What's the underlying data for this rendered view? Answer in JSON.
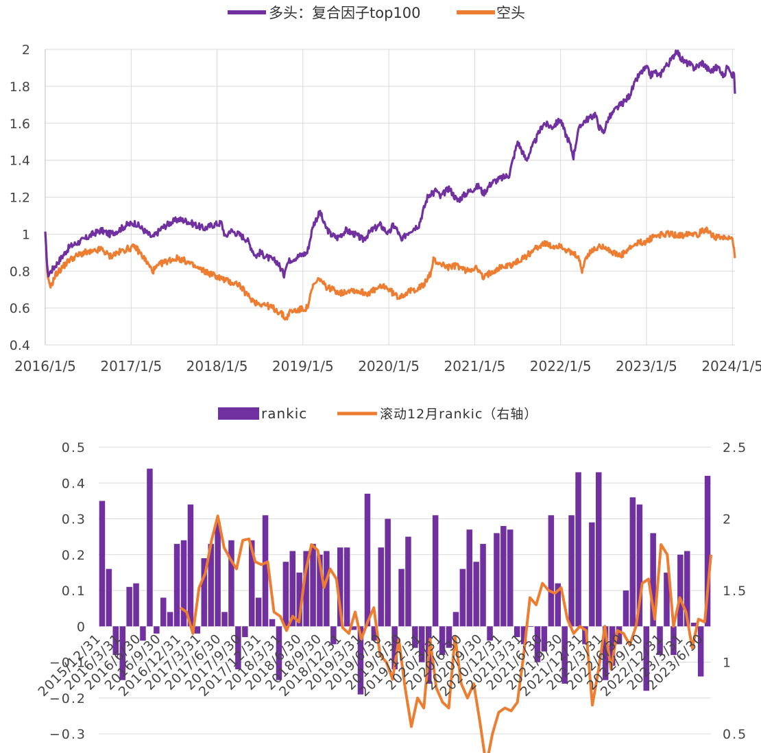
{
  "chart_data": [
    {
      "type": "line",
      "title": "",
      "legend_position": "top-center",
      "x_tick_labels": [
        "2016/1/5",
        "2017/1/5",
        "2018/1/5",
        "2019/1/5",
        "2020/1/5",
        "2021/1/5",
        "2022/1/5",
        "2023/1/5",
        "2024/1/5"
      ],
      "x_tick_years": [
        2016,
        2017,
        2018,
        2019,
        2020,
        2021,
        2022,
        2023,
        2024
      ],
      "x_range": [
        2016.0,
        2024.03
      ],
      "y_ticks": [
        "0.4",
        "0.6",
        "0.8",
        "1",
        "1.2",
        "1.4",
        "1.6",
        "1.8",
        "2"
      ],
      "ylim": [
        0.4,
        2.0
      ],
      "grid": true,
      "series": [
        {
          "name": "多头：复合因子top100",
          "color": "#7030A0",
          "x": [
            2016.0,
            2016.03,
            2016.07,
            2016.12,
            2016.2,
            2016.28,
            2016.36,
            2016.45,
            2016.55,
            2016.65,
            2016.75,
            2016.85,
            2016.95,
            2017.05,
            2017.15,
            2017.25,
            2017.35,
            2017.45,
            2017.55,
            2017.65,
            2017.75,
            2017.85,
            2017.95,
            2018.05,
            2018.1,
            2018.15,
            2018.25,
            2018.35,
            2018.45,
            2018.5,
            2018.6,
            2018.7,
            2018.78,
            2018.8,
            2018.85,
            2018.95,
            2019.05,
            2019.12,
            2019.2,
            2019.25,
            2019.32,
            2019.4,
            2019.5,
            2019.6,
            2019.7,
            2019.8,
            2019.9,
            2020.0,
            2020.05,
            2020.1,
            2020.15,
            2020.2,
            2020.25,
            2020.35,
            2020.45,
            2020.5,
            2020.52,
            2020.55,
            2020.6,
            2020.7,
            2020.8,
            2020.9,
            2021.0,
            2021.05,
            2021.1,
            2021.15,
            2021.2,
            2021.3,
            2021.4,
            2021.5,
            2021.55,
            2021.6,
            2021.65,
            2021.7,
            2021.75,
            2021.8,
            2021.9,
            2022.0,
            2022.05,
            2022.1,
            2022.15,
            2022.2,
            2022.25,
            2022.3,
            2022.35,
            2022.4,
            2022.45,
            2022.5,
            2022.55,
            2022.6,
            2022.65,
            2022.7,
            2022.75,
            2022.8,
            2022.85,
            2022.9,
            2022.95,
            2023.0,
            2023.05,
            2023.1,
            2023.15,
            2023.2,
            2023.25,
            2023.3,
            2023.35,
            2023.4,
            2023.45,
            2023.5,
            2023.55,
            2023.6,
            2023.65,
            2023.7,
            2023.75,
            2023.8,
            2023.85,
            2023.9,
            2023.95,
            2024.0,
            2024.02,
            2024.03
          ],
          "values": [
            1.0,
            0.78,
            0.8,
            0.83,
            0.88,
            0.93,
            0.95,
            0.97,
            1.0,
            1.02,
            1.0,
            1.02,
            1.05,
            1.06,
            1.02,
            0.98,
            1.03,
            1.06,
            1.08,
            1.07,
            1.05,
            1.03,
            1.05,
            1.06,
            0.98,
            1.02,
            1.0,
            0.97,
            0.88,
            0.9,
            0.87,
            0.85,
            0.78,
            0.83,
            0.86,
            0.88,
            0.9,
            1.05,
            1.12,
            1.05,
            1.0,
            0.98,
            1.02,
            1.0,
            0.97,
            1.02,
            1.05,
            1.0,
            1.05,
            1.02,
            0.96,
            1.0,
            1.02,
            1.05,
            1.2,
            1.23,
            1.22,
            1.24,
            1.2,
            1.25,
            1.18,
            1.22,
            1.25,
            1.26,
            1.22,
            1.25,
            1.28,
            1.3,
            1.32,
            1.5,
            1.45,
            1.4,
            1.45,
            1.5,
            1.55,
            1.6,
            1.58,
            1.62,
            1.55,
            1.5,
            1.42,
            1.55,
            1.6,
            1.62,
            1.63,
            1.65,
            1.58,
            1.55,
            1.62,
            1.65,
            1.68,
            1.7,
            1.72,
            1.75,
            1.8,
            1.85,
            1.88,
            1.9,
            1.86,
            1.88,
            1.85,
            1.9,
            1.92,
            1.95,
            2.0,
            1.95,
            1.93,
            1.92,
            1.9,
            1.91,
            1.93,
            1.9,
            1.88,
            1.9,
            1.9,
            1.85,
            1.92,
            1.86,
            1.87,
            1.76
          ]
        },
        {
          "name": "空头",
          "color": "#ED7D31",
          "x": [
            2016.0,
            2016.03,
            2016.07,
            2016.12,
            2016.2,
            2016.28,
            2016.36,
            2016.45,
            2016.55,
            2016.65,
            2016.75,
            2016.85,
            2016.95,
            2017.05,
            2017.15,
            2017.25,
            2017.35,
            2017.45,
            2017.55,
            2017.65,
            2017.75,
            2017.85,
            2017.95,
            2018.05,
            2018.15,
            2018.25,
            2018.35,
            2018.45,
            2018.55,
            2018.65,
            2018.75,
            2018.8,
            2018.85,
            2018.95,
            2019.05,
            2019.12,
            2019.2,
            2019.25,
            2019.35,
            2019.45,
            2019.55,
            2019.65,
            2019.75,
            2019.85,
            2019.95,
            2020.05,
            2020.1,
            2020.2,
            2020.3,
            2020.4,
            2020.5,
            2020.52,
            2020.6,
            2020.7,
            2020.8,
            2020.9,
            2021.0,
            2021.05,
            2021.1,
            2021.2,
            2021.3,
            2021.4,
            2021.5,
            2021.6,
            2021.7,
            2021.8,
            2021.9,
            2022.0,
            2022.1,
            2022.2,
            2022.25,
            2022.3,
            2022.4,
            2022.5,
            2022.6,
            2022.7,
            2022.8,
            2022.9,
            2023.0,
            2023.1,
            2023.2,
            2023.3,
            2023.4,
            2023.5,
            2023.6,
            2023.7,
            2023.8,
            2023.9,
            2024.0,
            2024.02,
            2024.03
          ],
          "values": [
            1.0,
            0.75,
            0.72,
            0.78,
            0.82,
            0.86,
            0.88,
            0.9,
            0.9,
            0.92,
            0.88,
            0.9,
            0.92,
            0.93,
            0.87,
            0.8,
            0.84,
            0.86,
            0.87,
            0.85,
            0.82,
            0.8,
            0.78,
            0.76,
            0.74,
            0.73,
            0.67,
            0.63,
            0.62,
            0.6,
            0.57,
            0.54,
            0.58,
            0.59,
            0.6,
            0.72,
            0.76,
            0.72,
            0.7,
            0.68,
            0.7,
            0.69,
            0.68,
            0.7,
            0.72,
            0.68,
            0.66,
            0.68,
            0.7,
            0.72,
            0.8,
            0.86,
            0.84,
            0.82,
            0.83,
            0.8,
            0.82,
            0.8,
            0.76,
            0.8,
            0.82,
            0.83,
            0.85,
            0.88,
            0.92,
            0.95,
            0.93,
            0.94,
            0.9,
            0.88,
            0.8,
            0.88,
            0.92,
            0.94,
            0.9,
            0.88,
            0.92,
            0.95,
            0.96,
            0.99,
            1.0,
            1.0,
            0.99,
            1.01,
            1.0,
            1.03,
            0.98,
            0.98,
            0.97,
            0.94,
            0.87
          ]
        }
      ]
    },
    {
      "type": "bar+line",
      "title": "",
      "legend_position": "top-center",
      "left_y_ticks": [
        "−0.3",
        "−0.2",
        "−0.1",
        "0",
        "0.1",
        "0.2",
        "0.3",
        "0.4",
        "0.5"
      ],
      "left_ylim": [
        -0.3,
        0.5
      ],
      "right_y_ticks": [
        "0.5",
        "1",
        "1.5",
        "2",
        "2.5"
      ],
      "right_ylim": [
        0.5,
        2.5
      ],
      "x_tick_labels": [
        "2015/12/31",
        "2016/3/31",
        "2016/6/30",
        "2016/9/30",
        "2016/12/31",
        "2017/3/31",
        "2017/6/30",
        "2017/9/30",
        "2017/12/31",
        "2018/3/31",
        "2018/6/30",
        "2018/9/30",
        "2018/12/31",
        "2019/3/31",
        "2019/6/30",
        "2019/9/30",
        "2019/12/31",
        "2020/3/31",
        "2020/6/30",
        "2020/9/30",
        "2020/12/31",
        "2021/3/31",
        "2021/6/30",
        "2021/9/30",
        "2021/12/31",
        "2022/3/31",
        "2022/6/30",
        "2022/9/30",
        "2022/12/31",
        "2023/3/31",
        "2023/6/30"
      ],
      "series": [
        {
          "name": "rankic",
          "axis": "left",
          "kind": "bar",
          "color": "#7030A0",
          "values": [
            0.35,
            0.16,
            -0.08,
            -0.15,
            0.11,
            0.12,
            -0.04,
            0.44,
            -0.02,
            0.08,
            0.04,
            0.23,
            0.24,
            0.34,
            -0.02,
            0.19,
            0.23,
            0.29,
            0.04,
            0.24,
            -0.12,
            -0.03,
            0.24,
            0.08,
            0.31,
            0.02,
            -0.15,
            0.18,
            0.21,
            0.15,
            0.21,
            0.23,
            0.2,
            0.21,
            -0.05,
            0.22,
            0.22,
            -0.01,
            -0.19,
            0.37,
            -0.04,
            0.22,
            0.3,
            -0.12,
            0.16,
            0.25,
            -0.06,
            -0.1,
            -0.16,
            0.31,
            -0.08,
            -0.06,
            0.04,
            0.16,
            0.27,
            0.18,
            0.23,
            -0.04,
            0.26,
            0.28,
            0.27,
            -0.03,
            -0.05,
            0.0,
            -0.1,
            -0.07,
            0.31,
            0.12,
            -0.16,
            0.31,
            0.43,
            -0.05,
            0.29,
            0.43,
            -0.15,
            -0.11,
            -0.05,
            0.1,
            0.36,
            0.34,
            -0.18,
            0.26,
            -0.08,
            0.15,
            -0.08,
            0.2,
            0.21,
            0.01,
            -0.14,
            0.42
          ],
          "partial": true
        },
        {
          "name": "滚动12月rankic（右轴）",
          "axis": "right",
          "kind": "line",
          "color": "#ED7D31",
          "start_bar_index": 12,
          "values": [
            1.38,
            1.35,
            1.2,
            1.52,
            1.62,
            1.85,
            2.02,
            1.8,
            1.72,
            1.65,
            1.85,
            1.86,
            1.7,
            1.68,
            1.7,
            1.35,
            1.32,
            1.22,
            1.32,
            1.28,
            1.62,
            1.82,
            1.78,
            1.52,
            1.65,
            1.58,
            1.24,
            1.2,
            1.35,
            1.16,
            1.28,
            1.38,
            1.05,
            1.0,
            0.88,
            1.16,
            0.82,
            0.55,
            0.75,
            0.68,
            1.16,
            0.82,
            0.72,
            0.68,
            1.18,
            0.85,
            0.75,
            0.85,
            0.58,
            0.28,
            0.5,
            0.65,
            0.68,
            0.66,
            0.72,
            1.05,
            1.45,
            1.4,
            1.55,
            1.5,
            1.48,
            1.52,
            1.3,
            1.2,
            1.25,
            1.22,
            0.7,
            0.95,
            1.25,
            0.95,
            1.22,
            1.2,
            1.12,
            1.25,
            1.55,
            1.58,
            1.3,
            1.82,
            1.75,
            1.25,
            1.45,
            1.35,
            1.1,
            1.3,
            1.28,
            1.75
          ]
        }
      ]
    }
  ]
}
